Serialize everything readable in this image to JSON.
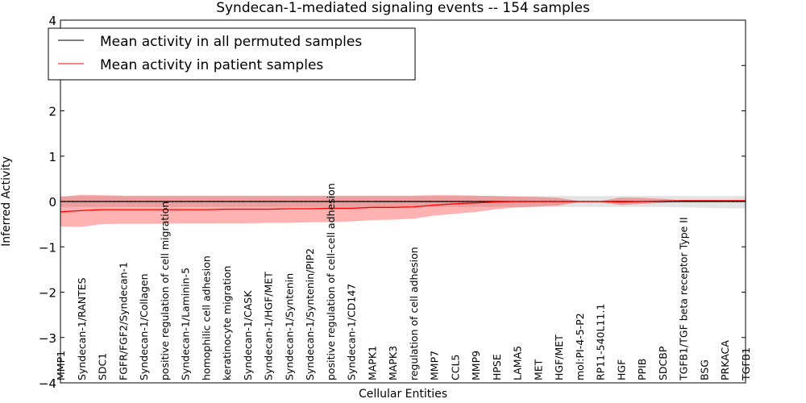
{
  "chart_data": {
    "type": "line",
    "title": "Syndecan-1-mediated signaling events -- 154 samples",
    "xlabel": "Cellular Entities",
    "ylabel": "Inferred Activity",
    "ylim": [
      -4,
      4
    ],
    "yticks": [
      -4,
      -3,
      -2,
      -1,
      0,
      1,
      2,
      3,
      4
    ],
    "ytick_labels": [
      "−4",
      "−3",
      "−2",
      "−1",
      "0",
      "1",
      "2",
      "3",
      "4"
    ],
    "legend_placement": "top-left",
    "categories": [
      "MMP1",
      "Syndecan-1/RANTES",
      "SDC1",
      "FGFR/FGF2/Syndecan-1",
      "Syndecan-1/Collagen",
      "positive regulation of cell migration",
      "Syndecan-1/Laminin-5",
      "homophilic cell adhesion",
      "keratinocyte migration",
      "Syndecan-1/CASK",
      "Syndecan-1/HGF/MET",
      "Syndecan-1/Syntenin",
      "Syndecan-1/Syntenin/PIP2",
      "positive regulation of cell-cell adhesion",
      "Syndecan-1/CD147",
      "MAPK1",
      "MAPK3",
      "regulation of cell adhesion",
      "MMP7",
      "CCL5",
      "MMP9",
      "HPSE",
      "LAMA5",
      "MET",
      "HGF/MET",
      "mol:PI-4-5-P2",
      "RP11-540L11.1",
      "HGF",
      "PPIB",
      "SDCBP",
      "TGFB1/TGF beta receptor Type II",
      "BSG",
      "PRKACA",
      "TGFB1"
    ],
    "series": [
      {
        "name": "Mean activity in all permuted samples",
        "color": "#000000",
        "values": [
          0,
          0,
          0,
          0,
          0,
          0,
          0,
          0,
          0,
          0,
          0,
          0,
          0,
          0,
          0,
          0,
          0,
          0,
          0,
          0,
          0,
          0,
          0,
          0,
          0,
          0,
          0,
          0,
          0,
          0,
          0,
          0,
          0,
          0
        ],
        "band_upper": [
          0.12,
          0.12,
          0.12,
          0.12,
          0.12,
          0.12,
          0.12,
          0.12,
          0.12,
          0.12,
          0.12,
          0.12,
          0.12,
          0.12,
          0.12,
          0.12,
          0.12,
          0.12,
          0.12,
          0.12,
          0.12,
          0.12,
          0.12,
          0.12,
          0.12,
          0.12,
          0.12,
          0.12,
          0.12,
          0.12,
          0.12,
          0.12,
          0.12,
          0.12
        ],
        "band_lower": [
          -0.12,
          -0.12,
          -0.12,
          -0.12,
          -0.12,
          -0.12,
          -0.12,
          -0.12,
          -0.12,
          -0.12,
          -0.12,
          -0.12,
          -0.12,
          -0.12,
          -0.12,
          -0.12,
          -0.12,
          -0.12,
          -0.12,
          -0.12,
          -0.12,
          -0.12,
          -0.12,
          -0.12,
          -0.12,
          -0.12,
          -0.12,
          -0.12,
          -0.12,
          -0.12,
          -0.13,
          -0.14,
          -0.15,
          -0.15
        ],
        "band_color": "#c8c8c8"
      },
      {
        "name": "Mean activity in patient samples",
        "color": "#ff0000",
        "values": [
          -0.23,
          -0.2,
          -0.18,
          -0.18,
          -0.18,
          -0.18,
          -0.18,
          -0.18,
          -0.17,
          -0.17,
          -0.17,
          -0.16,
          -0.16,
          -0.15,
          -0.15,
          -0.13,
          -0.13,
          -0.12,
          -0.08,
          -0.05,
          -0.03,
          -0.01,
          0,
          0,
          0,
          0,
          0,
          -0.01,
          0,
          0.01,
          0.02,
          0.02,
          0.02,
          0.02
        ],
        "band_upper": [
          0.1,
          0.15,
          0.14,
          0.13,
          0.13,
          0.13,
          0.13,
          0.13,
          0.13,
          0.13,
          0.13,
          0.13,
          0.13,
          0.13,
          0.13,
          0.13,
          0.13,
          0.13,
          0.14,
          0.14,
          0.13,
          0.12,
          0.11,
          0.1,
          0.08,
          0.01,
          0.01,
          0.09,
          0.08,
          0.06,
          0.02,
          0.02,
          0.02,
          0.02
        ],
        "band_lower": [
          -0.55,
          -0.56,
          -0.5,
          -0.49,
          -0.49,
          -0.49,
          -0.48,
          -0.48,
          -0.48,
          -0.48,
          -0.47,
          -0.47,
          -0.46,
          -0.45,
          -0.44,
          -0.41,
          -0.4,
          -0.38,
          -0.31,
          -0.27,
          -0.23,
          -0.17,
          -0.13,
          -0.11,
          -0.09,
          -0.01,
          -0.01,
          -0.08,
          -0.05,
          -0.03,
          0.01,
          0.01,
          0.01,
          0.01
        ],
        "band_color": "#ff0000"
      }
    ]
  }
}
